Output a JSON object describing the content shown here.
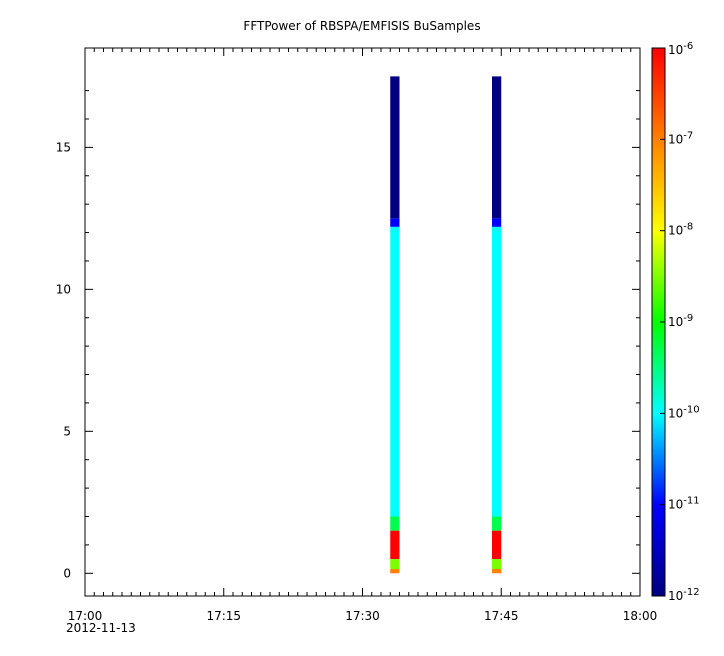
{
  "chart_data": {
    "type": "heatmap",
    "title": "FFTPower of RBSPA/EMFISIS  BuSamples",
    "xlabel": "",
    "ylabel": "",
    "x_date_label": "2012-11-13",
    "x_ticks": [
      "17:00",
      "17:15",
      "17:30",
      "17:45",
      "18:00"
    ],
    "x_range_minutes": [
      0,
      60
    ],
    "y_ticks": [
      "0",
      "5",
      "10",
      "15"
    ],
    "ylim": [
      -0.8,
      18.5
    ],
    "colorbar": {
      "scale": "log",
      "range": [
        1e-12,
        1e-06
      ],
      "tick_labels": [
        {
          "base": "10",
          "exp": "-6"
        },
        {
          "base": "10",
          "exp": "-7"
        },
        {
          "base": "10",
          "exp": "-8"
        },
        {
          "base": "10",
          "exp": "-9"
        },
        {
          "base": "10",
          "exp": "-10"
        },
        {
          "base": "10",
          "exp": "-11"
        },
        {
          "base": "10",
          "exp": "-12"
        }
      ],
      "colors": [
        "#000080",
        "#0000ff",
        "#00ffff",
        "#00ff00",
        "#ffff00",
        "#ff8000",
        "#ff0000"
      ]
    },
    "grid": false,
    "series": [
      {
        "time_range": [
          "17:33",
          "17:34"
        ],
        "bands": [
          {
            "y0": 12.5,
            "y1": 17.5,
            "power": 1e-12
          },
          {
            "y0": 12.2,
            "y1": 12.5,
            "power": 1e-11
          },
          {
            "y0": 2.0,
            "y1": 12.2,
            "power": 1e-10
          },
          {
            "y0": 1.5,
            "y1": 2.0,
            "power": 5e-10
          },
          {
            "y0": 0.5,
            "y1": 1.5,
            "power": 1e-06
          },
          {
            "y0": 0.15,
            "y1": 0.5,
            "power": 3e-09
          },
          {
            "y0": 0.0,
            "y1": 0.15,
            "power": 1e-07
          }
        ]
      },
      {
        "time_range": [
          "17:44",
          "17:45"
        ],
        "bands": [
          {
            "y0": 12.5,
            "y1": 17.5,
            "power": 1e-12
          },
          {
            "y0": 12.2,
            "y1": 12.5,
            "power": 1e-11
          },
          {
            "y0": 2.0,
            "y1": 12.2,
            "power": 1e-10
          },
          {
            "y0": 1.5,
            "y1": 2.0,
            "power": 5e-10
          },
          {
            "y0": 0.5,
            "y1": 1.5,
            "power": 1e-06
          },
          {
            "y0": 0.15,
            "y1": 0.5,
            "power": 3e-09
          },
          {
            "y0": 0.0,
            "y1": 0.15,
            "power": 1e-07
          }
        ]
      }
    ]
  }
}
